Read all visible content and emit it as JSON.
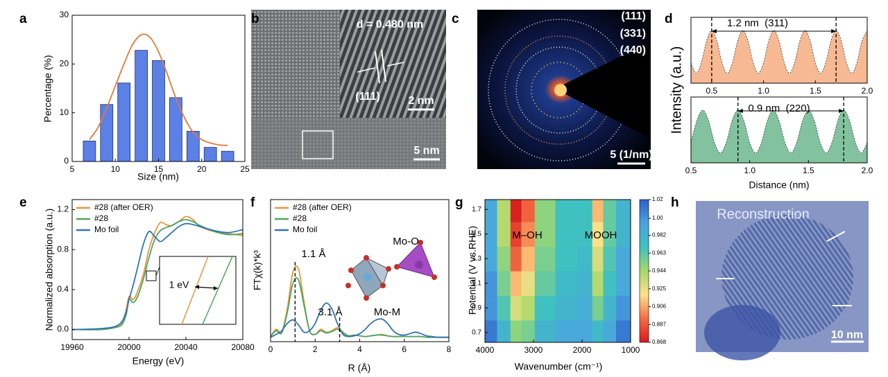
{
  "panel_labels": [
    "a",
    "b",
    "c",
    "d",
    "e",
    "f",
    "g",
    "h"
  ],
  "images": [
    {
      "labels": [
        "d = 0.480 nm",
        "(111)",
        "2 nm",
        "5 nm"
      ]
    },
    {
      "labels": [
        "(111)",
        "(331)",
        "(440)",
        "5 (1/nm)"
      ]
    },
    {
      "labels": [
        "Reconstruction",
        "10 nm"
      ]
    }
  ],
  "chart_data": [
    {
      "type": "bar",
      "xlabel": "Size (nm)",
      "ylabel": "Percentage (%)",
      "x": [
        7,
        9,
        11,
        13,
        15,
        17,
        19,
        21,
        23
      ],
      "values": [
        4.2,
        11.7,
        16.1,
        22.8,
        20.7,
        13.1,
        6.2,
        2.9,
        2.1
      ],
      "color": "#5b80e6",
      "edgecolor": "#1f2f6f",
      "fit_line": {
        "x": [
          7,
          8,
          9,
          10,
          11,
          12,
          13,
          14,
          15,
          16,
          17,
          18,
          19,
          20,
          21,
          22,
          23
        ],
        "values": [
          4.5,
          7,
          11,
          15.5,
          20,
          24,
          26,
          25.5,
          22.5,
          18,
          13,
          9,
          6,
          4.5,
          3.8,
          3.4,
          3.3
        ],
        "color": "#e07b39"
      },
      "xlim": [
        5,
        25
      ],
      "xticks": [
        5,
        10,
        15,
        20,
        25
      ],
      "ylim": [
        0,
        30
      ],
      "yticks": [
        0,
        10,
        20,
        30
      ]
    },
    {
      "type": "line",
      "ylabel": "Intensity (a.u.)",
      "area": true,
      "x": [
        0.3,
        0.35,
        0.4,
        0.45,
        0.5,
        0.55,
        0.6,
        0.65,
        0.7,
        0.75,
        0.8,
        0.85,
        0.9,
        0.95,
        1.0,
        1.05,
        1.1,
        1.15,
        1.2,
        1.25,
        1.3,
        1.35,
        1.4,
        1.45,
        1.5,
        1.55,
        1.6,
        1.65,
        1.7,
        1.75,
        1.8,
        1.85,
        1.9,
        1.95,
        2.0
      ],
      "series": [
        {
          "color": "#f08a4b",
          "values": [
            0.51,
            0.35,
            0.51,
            0.84,
            1,
            0.84,
            0.51,
            0.35,
            0.51,
            0.84,
            1,
            0.84,
            0.51,
            0.35,
            0.51,
            0.84,
            1,
            0.84,
            0.51,
            0.35,
            0.51,
            0.84,
            1,
            0.84,
            0.51,
            0.35,
            0.51,
            0.84,
            1,
            0.84,
            0.51,
            0.35,
            0.51,
            0.84,
            1
          ]
        }
      ],
      "vlines": [
        0.5,
        1.7
      ],
      "annotations": [
        "1.2 nm  (311)"
      ],
      "xlim": [
        0.3,
        2.0
      ],
      "xticks": [
        0.5,
        {
          "value": 1.0,
          "label": "1.0"
        },
        1.5,
        {
          "value": 2.0,
          "label": "2.0"
        }
      ],
      "ylim": [
        0.2,
        1.2
      ]
    },
    {
      "type": "line",
      "xlabel": "Distance (nm)",
      "area": true,
      "x": [
        0.5,
        0.55,
        0.6,
        0.65,
        0.7,
        0.75,
        0.8,
        0.85,
        0.9,
        0.95,
        1.0,
        1.05,
        1.1,
        1.15,
        1.2,
        1.25,
        1.3,
        1.35,
        1.4,
        1.45,
        1.5,
        1.55,
        1.6,
        1.65,
        1.7,
        1.75,
        1.8,
        1.85,
        1.9,
        1.95,
        2.0
      ],
      "series": [
        {
          "color": "#2e9a5e",
          "values": [
            0.51,
            0.84,
            1,
            0.84,
            0.51,
            0.35,
            0.51,
            0.84,
            1,
            0.84,
            0.51,
            0.35,
            0.51,
            0.84,
            1,
            0.84,
            0.51,
            0.35,
            0.51,
            0.84,
            1,
            0.84,
            0.51,
            0.35,
            0.51,
            0.84,
            1,
            0.84,
            0.51,
            0.35,
            0.51
          ]
        }
      ],
      "vlines": [
        0.9,
        1.8
      ],
      "annotations": [
        "0.9 nm  (220)"
      ],
      "xlim": [
        0.5,
        2.0
      ],
      "xticks": [
        0.5,
        {
          "value": 1.0,
          "label": "1.0"
        },
        1.5,
        {
          "value": 2.0,
          "label": "2.0"
        }
      ],
      "ylim": [
        0.2,
        1.2
      ]
    },
    {
      "type": "line",
      "xlabel": "Energy (eV)",
      "ylabel": "Normalized absorption (a.u.)",
      "legend": "upper left",
      "x": [
        19960,
        19980,
        19990,
        19995,
        19998,
        20000,
        20003,
        20006,
        20010,
        20014,
        20018,
        20022,
        20026,
        20030,
        20035,
        20040,
        20045,
        20050,
        20060,
        20070,
        20080
      ],
      "series": [
        {
          "name": "#28 (after OER)",
          "color": "#e8963a",
          "values": [
            0,
            0,
            0.02,
            0.06,
            0.2,
            0.33,
            0.3,
            0.38,
            0.55,
            0.8,
            0.97,
            1.07,
            1.05,
            1.04,
            1.08,
            1.13,
            1.1,
            1.03,
            0.98,
            0.96,
            0.94
          ]
        },
        {
          "name": "#28",
          "color": "#4aa564",
          "values": [
            0,
            0,
            0.02,
            0.05,
            0.15,
            0.3,
            0.27,
            0.33,
            0.5,
            0.72,
            0.9,
            0.99,
            1.02,
            1.04,
            1.08,
            1.1,
            1.08,
            1.04,
            0.98,
            0.95,
            0.96
          ]
        },
        {
          "name": "Mo foil",
          "color": "#2f74b5",
          "values": [
            0,
            0.01,
            0.03,
            0.08,
            0.18,
            0.3,
            0.45,
            0.62,
            0.85,
            0.98,
            0.93,
            0.88,
            0.92,
            0.97,
            1.03,
            1.06,
            1.05,
            1.03,
            0.99,
            0.97,
            1.0
          ]
        }
      ],
      "annotations": [
        "1 eV"
      ],
      "xlim": [
        19960,
        20080
      ],
      "xticks": [
        19960,
        20000,
        20040,
        20080
      ],
      "ylim": [
        -0.1,
        1.3
      ],
      "yticks": [
        {
          "value": 0,
          "label": "0.0"
        },
        0.4,
        0.8,
        1.2
      ]
    },
    {
      "type": "line",
      "xlabel": "R (Å)",
      "ylabel": "FTχ(k)*k³",
      "legend": "upper left",
      "x": [
        0,
        0.25,
        0.5,
        0.75,
        1,
        1.25,
        1.5,
        1.75,
        2,
        2.25,
        2.5,
        2.75,
        3,
        3.25,
        3.5,
        3.75,
        4,
        4.25,
        4.5,
        4.75,
        5,
        5.25,
        5.5,
        5.75,
        6,
        6.25,
        6.5,
        6.75,
        7,
        7.25,
        7.5,
        7.75,
        8
      ],
      "series": [
        {
          "name": "#28 (after OER)",
          "color": "#e8963a",
          "values": [
            0.02,
            0.12,
            0.08,
            0.4,
            0.9,
            0.95,
            0.5,
            0.1,
            0.05,
            0.12,
            0.08,
            0.1,
            0.14,
            0.08,
            0.03,
            0.04,
            0.03,
            0.02,
            0.03,
            0.04,
            0.05,
            0.03,
            0.02,
            0.02,
            0.02,
            0.02,
            0.02,
            0.02,
            0.01,
            0.01,
            0.01,
            0.01,
            0.01
          ]
        },
        {
          "name": "#28",
          "color": "#4aa564",
          "values": [
            0.02,
            0.1,
            0.07,
            0.35,
            0.75,
            0.8,
            0.45,
            0.1,
            0.05,
            0.1,
            0.07,
            0.09,
            0.12,
            0.07,
            0.03,
            0.04,
            0.03,
            0.02,
            0.03,
            0.04,
            0.04,
            0.03,
            0.02,
            0.02,
            0.02,
            0.02,
            0.02,
            0.02,
            0.01,
            0.01,
            0.01,
            0.01,
            0.01
          ]
        },
        {
          "name": "Mo foil",
          "color": "#2f74b5",
          "values": [
            0.01,
            0.05,
            0.1,
            0.2,
            0.25,
            0.18,
            0.08,
            0.1,
            0.2,
            0.38,
            0.48,
            0.4,
            0.2,
            0.05,
            0.02,
            0.03,
            0.06,
            0.12,
            0.2,
            0.25,
            0.26,
            0.2,
            0.1,
            0.05,
            0.04,
            0.06,
            0.08,
            0.06,
            0.03,
            0.02,
            0.01,
            0.01,
            0.01
          ]
        }
      ],
      "vlines": [
        1.1,
        3.1
      ],
      "annotations": [
        "1.1 Å",
        "3.1 Å",
        "Mo-O",
        "Mo-M"
      ],
      "xlim": [
        0,
        8
      ],
      "xticks": [
        0,
        2,
        4,
        6,
        8
      ],
      "ylim": [
        -0.05,
        1.9
      ]
    },
    {
      "type": "heatmap",
      "xlabel": "Wavenumber (cm⁻¹)",
      "ylabel": "Potential (V vs.RHE)",
      "x": [
        3900,
        3600,
        3350,
        3150,
        2800,
        2300,
        1900,
        1680,
        1450,
        1150
      ],
      "y": [
        0.7,
        0.9,
        1.1,
        1.3,
        1.5,
        1.7
      ],
      "z": [
        [
          1.01,
          0.98,
          0.95,
          0.955,
          0.98,
          0.99,
          0.99,
          0.975,
          0.99,
          1.01
        ],
        [
          1.0,
          0.965,
          0.93,
          0.94,
          0.97,
          0.98,
          0.985,
          0.955,
          0.98,
          1.0
        ],
        [
          1.0,
          0.955,
          0.91,
          0.925,
          0.96,
          0.975,
          0.98,
          0.94,
          0.97,
          0.99
        ],
        [
          0.99,
          0.95,
          0.89,
          0.91,
          0.955,
          0.97,
          0.975,
          0.93,
          0.965,
          0.99
        ],
        [
          0.99,
          0.94,
          0.88,
          0.9,
          0.95,
          0.97,
          0.97,
          0.92,
          0.96,
          0.98
        ],
        [
          0.99,
          0.94,
          0.87,
          0.89,
          0.95,
          0.97,
          0.97,
          0.91,
          0.96,
          0.98
        ]
      ],
      "colormap": [
        "#d7191c",
        "#f46d43",
        "#fee08b",
        "#a6d96a",
        "#3fc1c0",
        "#4aa3e0",
        "#2c5fc8"
      ],
      "zlim": [
        0.868,
        1.02
      ],
      "zticks": [
        1.02,
        {
          "value": 1.0,
          "label": "1.00"
        },
        0.982,
        0.963,
        0.944,
        0.925,
        0.906,
        0.887,
        0.868
      ],
      "annotations": [
        "M–OH",
        "MOOH"
      ],
      "xlim": [
        4000,
        1000
      ],
      "xticks": [
        4000,
        3000,
        2000,
        1000
      ],
      "ylim": [
        0.62,
        1.78
      ],
      "yticks": [
        0.7,
        0.9,
        1.1,
        1.3,
        1.5,
        1.7
      ]
    }
  ]
}
